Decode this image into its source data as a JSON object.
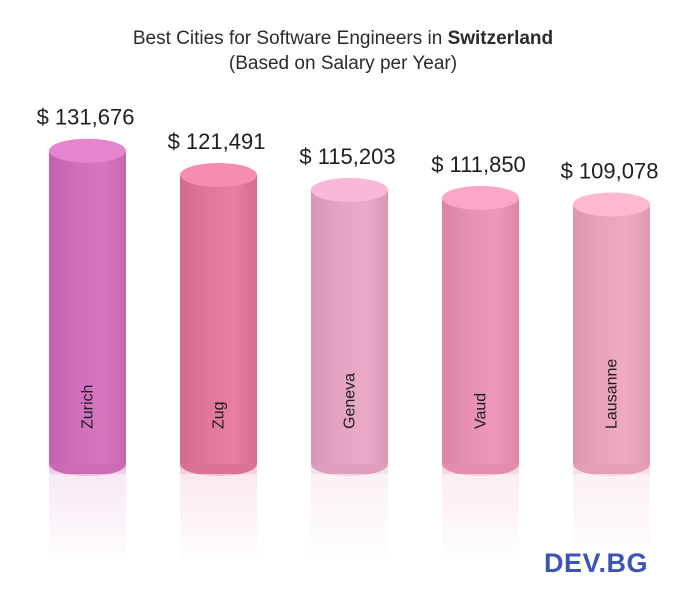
{
  "title": {
    "prefix": "Best Cities for Software Engineers in ",
    "emphasis": "Switzerland",
    "subtitle": "(Based on Salary per Year)"
  },
  "chart_data": {
    "type": "bar",
    "categories": [
      "Zurich",
      "Zug",
      "Geneva",
      "Vaud",
      "Lausanne"
    ],
    "values": [
      131676,
      121491,
      115203,
      111850,
      109078
    ],
    "value_labels": [
      "$ 131,676",
      "$ 121,491",
      "$ 115,203",
      "$ 111,850",
      "$ 109,078"
    ],
    "colors": [
      "#cf6fb9",
      "#e0769b",
      "#e3a2bf",
      "#e790b2",
      "#e9a2bb"
    ],
    "title": "Best Cities for Software Engineers in Switzerland",
    "subtitle": "(Based on Salary per Year)",
    "xlabel": "",
    "ylabel": "",
    "grid": false,
    "legend": "none"
  },
  "logo": {
    "text": "DEV.BG"
  }
}
